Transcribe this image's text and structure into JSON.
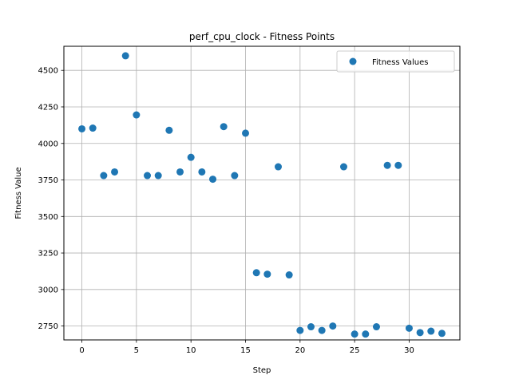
{
  "chart_data": {
    "type": "scatter",
    "title": "perf_cpu_clock - Fitness Points",
    "xlabel": "Step",
    "ylabel": "Fitness Value",
    "xlim": [
      -1.65,
      34.65
    ],
    "ylim": [
      2655,
      4665
    ],
    "xticks": [
      0,
      5,
      10,
      15,
      20,
      25,
      30
    ],
    "xtick_labels": [
      "0",
      "5",
      "10",
      "15",
      "20",
      "25",
      "30"
    ],
    "yticks": [
      2750,
      3000,
      3250,
      3500,
      3750,
      4000,
      4250,
      4500
    ],
    "ytick_labels": [
      "2750",
      "3000",
      "3250",
      "3500",
      "3750",
      "4000",
      "4250",
      "4500"
    ],
    "grid": true,
    "legend_position": "top-right",
    "series": [
      {
        "name": "Fitness Values",
        "color": "#1f77b4",
        "x": [
          0,
          1,
          2,
          3,
          4,
          5,
          6,
          7,
          8,
          9,
          10,
          11,
          12,
          13,
          14,
          15,
          16,
          17,
          18,
          19,
          20,
          21,
          22,
          23,
          24,
          25,
          26,
          27,
          28,
          29,
          30,
          31,
          32,
          33
        ],
        "y": [
          4100,
          4105,
          3780,
          3805,
          4600,
          4195,
          3780,
          3780,
          4090,
          3805,
          3905,
          3805,
          3755,
          4115,
          3780,
          4070,
          3115,
          3105,
          3840,
          3100,
          2720,
          2745,
          2720,
          2750,
          3840,
          2695,
          2695,
          2745,
          3850,
          3850,
          2735,
          2705,
          2715,
          2700
        ]
      }
    ]
  }
}
